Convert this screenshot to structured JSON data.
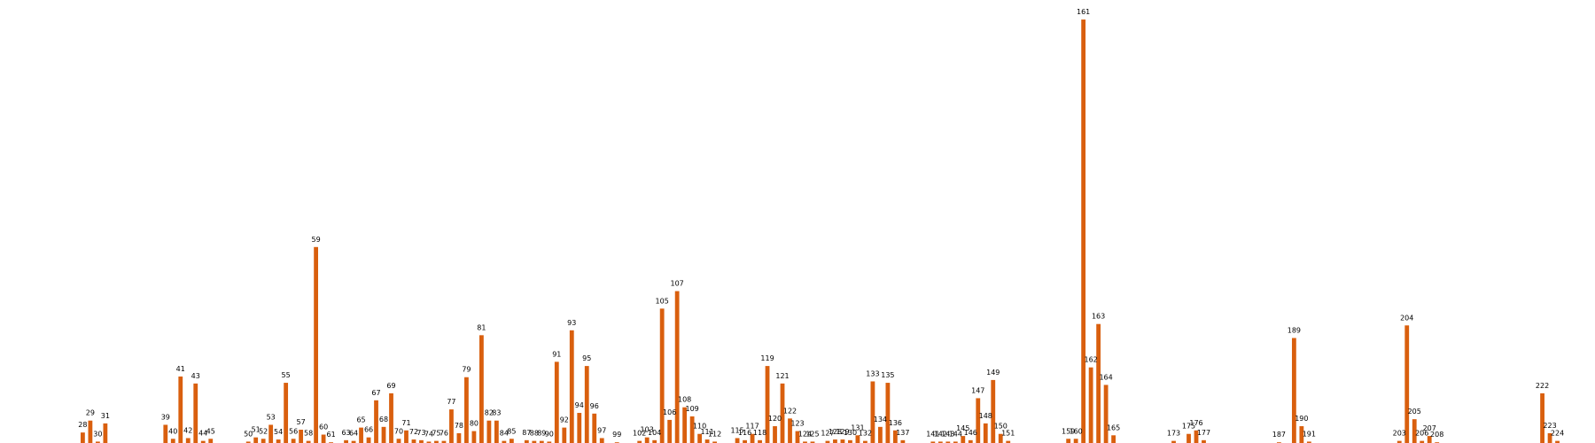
{
  "chart_data": {
    "type": "bar",
    "title": "",
    "xlabel": "",
    "ylabel": "",
    "x_range": [
      17,
      229
    ],
    "ylim": [
      0,
      61
    ],
    "grid": false,
    "legend": "none",
    "bar_color": "#d95f0e",
    "label_color": "#000000",
    "background_color": "#ffffff",
    "bars": [
      {
        "label": "28",
        "value": 1.5
      },
      {
        "label": "29",
        "value": 3.2
      },
      {
        "label": "30",
        "value": 0.2
      },
      {
        "label": "31",
        "value": 2.8
      },
      {
        "label": "39",
        "value": 2.6
      },
      {
        "label": "40",
        "value": 0.6
      },
      {
        "label": "41",
        "value": 9.5
      },
      {
        "label": "42",
        "value": 0.7
      },
      {
        "label": "43",
        "value": 8.5
      },
      {
        "label": "44",
        "value": 0.3
      },
      {
        "label": "45",
        "value": 0.6
      },
      {
        "label": "50",
        "value": 0.2
      },
      {
        "label": "51",
        "value": 0.8
      },
      {
        "label": "52",
        "value": 0.6
      },
      {
        "label": "53",
        "value": 2.6
      },
      {
        "label": "54",
        "value": 0.5
      },
      {
        "label": "55",
        "value": 8.6
      },
      {
        "label": "56",
        "value": 0.6
      },
      {
        "label": "57",
        "value": 1.9
      },
      {
        "label": "58",
        "value": 0.3
      },
      {
        "label": "59",
        "value": 28.0
      },
      {
        "label": "60",
        "value": 1.2
      },
      {
        "label": "61",
        "value": 0.1
      },
      {
        "label": "63",
        "value": 0.4
      },
      {
        "label": "64",
        "value": 0.3
      },
      {
        "label": "65",
        "value": 2.2
      },
      {
        "label": "66",
        "value": 0.8
      },
      {
        "label": "67",
        "value": 6.1
      },
      {
        "label": "68",
        "value": 2.3
      },
      {
        "label": "69",
        "value": 7.1
      },
      {
        "label": "70",
        "value": 0.6
      },
      {
        "label": "71",
        "value": 1.8
      },
      {
        "label": "72",
        "value": 0.5
      },
      {
        "label": "73",
        "value": 0.4
      },
      {
        "label": "74",
        "value": 0.2
      },
      {
        "label": "75",
        "value": 0.3
      },
      {
        "label": "76",
        "value": 0.3
      },
      {
        "label": "77",
        "value": 4.8
      },
      {
        "label": "78",
        "value": 1.4
      },
      {
        "label": "79",
        "value": 9.4
      },
      {
        "label": "80",
        "value": 1.7
      },
      {
        "label": "81",
        "value": 15.4
      },
      {
        "label": "82",
        "value": 3.2
      },
      {
        "label": "83",
        "value": 3.2
      },
      {
        "label": "84",
        "value": 0.3
      },
      {
        "label": "85",
        "value": 0.6
      },
      {
        "label": "87",
        "value": 0.4
      },
      {
        "label": "88",
        "value": 0.3
      },
      {
        "label": "89",
        "value": 0.3
      },
      {
        "label": "90",
        "value": 0.2
      },
      {
        "label": "91",
        "value": 11.6
      },
      {
        "label": "92",
        "value": 2.2
      },
      {
        "label": "93",
        "value": 16.1
      },
      {
        "label": "94",
        "value": 4.3
      },
      {
        "label": "95",
        "value": 11.0
      },
      {
        "label": "96",
        "value": 4.2
      },
      {
        "label": "97",
        "value": 0.7
      },
      {
        "label": "99",
        "value": 0.1
      },
      {
        "label": "102",
        "value": 0.3
      },
      {
        "label": "103",
        "value": 0.8
      },
      {
        "label": "104",
        "value": 0.4
      },
      {
        "label": "105",
        "value": 19.2
      },
      {
        "label": "106",
        "value": 3.3
      },
      {
        "label": "107",
        "value": 21.7
      },
      {
        "label": "108",
        "value": 5.1
      },
      {
        "label": "109",
        "value": 3.8
      },
      {
        "label": "110",
        "value": 1.3
      },
      {
        "label": "111",
        "value": 0.5
      },
      {
        "label": "112",
        "value": 0.2
      },
      {
        "label": "115",
        "value": 0.7
      },
      {
        "label": "116",
        "value": 0.4
      },
      {
        "label": "117",
        "value": 1.3
      },
      {
        "label": "118",
        "value": 0.4
      },
      {
        "label": "119",
        "value": 11.0
      },
      {
        "label": "120",
        "value": 2.4
      },
      {
        "label": "121",
        "value": 8.5
      },
      {
        "label": "122",
        "value": 3.5
      },
      {
        "label": "123",
        "value": 1.7
      },
      {
        "label": "124",
        "value": 0.2
      },
      {
        "label": "125",
        "value": 0.2
      },
      {
        "label": "127",
        "value": 0.3
      },
      {
        "label": "128",
        "value": 0.5
      },
      {
        "label": "129",
        "value": 0.5
      },
      {
        "label": "130",
        "value": 0.4
      },
      {
        "label": "131",
        "value": 1.1
      },
      {
        "label": "132",
        "value": 0.3
      },
      {
        "label": "133",
        "value": 8.8
      },
      {
        "label": "134",
        "value": 2.3
      },
      {
        "label": "135",
        "value": 8.6
      },
      {
        "label": "136",
        "value": 1.8
      },
      {
        "label": "137",
        "value": 0.4
      },
      {
        "label": "141",
        "value": 0.2
      },
      {
        "label": "142",
        "value": 0.2
      },
      {
        "label": "143",
        "value": 0.2
      },
      {
        "label": "144",
        "value": 0.2
      },
      {
        "label": "145",
        "value": 1.0
      },
      {
        "label": "146",
        "value": 0.4
      },
      {
        "label": "147",
        "value": 6.4
      },
      {
        "label": "148",
        "value": 2.8
      },
      {
        "label": "149",
        "value": 9.0
      },
      {
        "label": "150",
        "value": 1.3
      },
      {
        "label": "151",
        "value": 0.3
      },
      {
        "label": "159",
        "value": 0.6
      },
      {
        "label": "160",
        "value": 0.6
      },
      {
        "label": "161",
        "value": 60.5
      },
      {
        "label": "162",
        "value": 10.8
      },
      {
        "label": "163",
        "value": 17.0
      },
      {
        "label": "164",
        "value": 8.3
      },
      {
        "label": "165",
        "value": 1.1
      },
      {
        "label": "173",
        "value": 0.3
      },
      {
        "label": "175",
        "value": 1.3
      },
      {
        "label": "176",
        "value": 1.8
      },
      {
        "label": "177",
        "value": 0.4
      },
      {
        "label": "187",
        "value": 0.1
      },
      {
        "label": "189",
        "value": 15.0
      },
      {
        "label": "190",
        "value": 2.4
      },
      {
        "label": "191",
        "value": 0.2
      },
      {
        "label": "203",
        "value": 0.3
      },
      {
        "label": "204",
        "value": 16.8
      },
      {
        "label": "205",
        "value": 3.4
      },
      {
        "label": "206",
        "value": 0.3
      },
      {
        "label": "207",
        "value": 1.0
      },
      {
        "label": "208",
        "value": 0.1
      },
      {
        "label": "222",
        "value": 7.1
      },
      {
        "label": "223",
        "value": 1.4
      },
      {
        "label": "224",
        "value": 0.3
      }
    ]
  }
}
